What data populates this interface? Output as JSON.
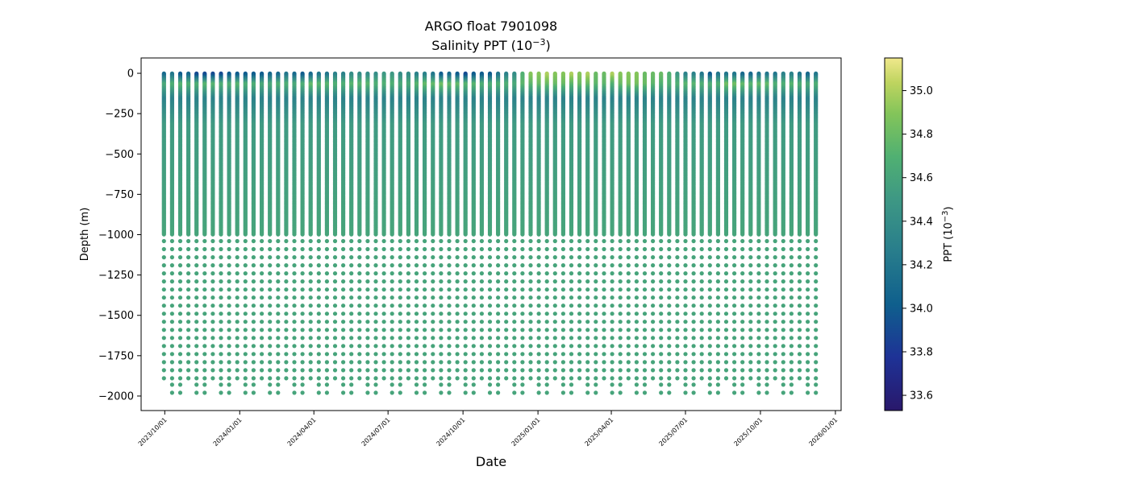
{
  "chart_data": {
    "type": "scatter",
    "title": "ARGO float 7901098",
    "subtitle": "Salinity PPT (10",
    "subtitle_sup": "−3",
    "subtitle_end": ")",
    "xlabel": "Date",
    "ylabel": "Depth (m)",
    "x_axis": {
      "type": "date",
      "range": [
        "2023-09-02",
        "2026-01-08"
      ],
      "ticks": [
        "2023-10-01",
        "2024-01-01",
        "2024-04-01",
        "2024-07-01",
        "2024-10-01",
        "2025-01-01",
        "2025-04-01",
        "2025-07-01",
        "2025-10-01",
        "2026-01-01"
      ],
      "tick_labels": [
        "2023/10/01",
        "2024/01/01",
        "2024/04/01",
        "2024/07/01",
        "2024/10/01",
        "2025/01/01",
        "2025/04/01",
        "2025/07/01",
        "2025/10/01",
        "2026/01/01"
      ]
    },
    "y_axis": {
      "range": [
        -2090,
        95
      ],
      "ticks": [
        0,
        -250,
        -500,
        -750,
        -1000,
        -1250,
        -1500,
        -1750,
        -2000
      ],
      "tick_labels": [
        "0",
        "−250",
        "−500",
        "−750",
        "−1000",
        "−1250",
        "−1500",
        "−1750",
        "−2000"
      ]
    },
    "colorbar": {
      "label": "PPT (10",
      "label_sup": "−3",
      "label_end": ")",
      "range": [
        33.53,
        35.15
      ],
      "ticks": [
        33.6,
        33.8,
        34.0,
        34.2,
        34.4,
        34.6,
        34.8,
        35.0
      ],
      "tick_labels": [
        "33.6",
        "33.8",
        "34.0",
        "34.2",
        "34.4",
        "34.6",
        "34.8",
        "35.0"
      ],
      "colormap": "haline"
    },
    "profiles": {
      "first_date": "2023-09-30",
      "last_date": "2025-12-16",
      "interval_days": 10,
      "max_depth": 2000,
      "dense_to_depth": 1000,
      "deep_sample_depths": [
        1040,
        1090,
        1140,
        1190,
        1240,
        1290,
        1340,
        1390,
        1440,
        1490,
        1540,
        1590,
        1640,
        1690,
        1740,
        1790,
        1840,
        1890,
        1930,
        1980
      ],
      "surface_salinity_by_profile": [
        34.1,
        34.2,
        34.0,
        34.1,
        33.9,
        33.9,
        33.9,
        33.9,
        34.0,
        34.0,
        34.0,
        34.0,
        34.0,
        34.1,
        34.1,
        34.2,
        34.1,
        34.0,
        34.1,
        34.2,
        34.2,
        34.3,
        34.3,
        34.4,
        34.4,
        34.4,
        34.4,
        34.5,
        34.5,
        34.4,
        34.4,
        34.3,
        34.3,
        34.2,
        34.0,
        34.1,
        34.0,
        33.9,
        34.0,
        34.0,
        34.0,
        34.2,
        34.3,
        34.4,
        34.7,
        34.9,
        34.9,
        35.0,
        34.9,
        34.9,
        35.0,
        34.9,
        35.0,
        34.8,
        34.8,
        35.0,
        34.9,
        34.9,
        34.9,
        34.8,
        34.8,
        34.8,
        34.7,
        34.5,
        34.3,
        34.3,
        34.2,
        34.0,
        34.2,
        34.2,
        34.2,
        34.1,
        34.1,
        34.2,
        34.2,
        34.2,
        34.3,
        34.3,
        34.2
      ],
      "subsurface_salinity_by_profile": [
        34.65,
        34.7,
        34.75,
        34.7,
        34.7,
        34.75,
        34.75,
        34.7,
        34.7,
        34.75,
        34.7,
        34.7,
        34.65,
        34.65,
        34.7,
        34.7,
        34.65,
        34.7,
        34.8,
        34.75,
        34.75,
        34.7,
        34.7,
        34.75,
        34.75,
        34.75,
        34.7,
        34.7,
        34.7,
        34.65,
        34.65,
        34.75,
        34.8,
        34.8,
        34.85,
        34.8,
        34.8,
        34.75,
        34.75,
        34.7,
        34.7,
        34.7,
        34.7,
        34.65,
        34.75,
        34.75,
        34.8,
        34.8,
        34.8,
        34.8,
        34.75,
        34.8,
        34.8,
        34.75,
        34.75,
        34.7,
        34.8,
        34.85,
        34.85,
        34.8,
        34.75,
        34.7,
        34.7,
        34.7,
        34.75,
        34.75,
        34.7,
        34.7,
        34.7,
        34.85,
        34.85,
        34.8,
        34.75,
        34.8,
        34.8,
        34.7,
        34.7,
        34.75,
        34.7
      ],
      "thermocline_salinity": 34.3,
      "intermediate_salinity": 34.52,
      "deep_salinity": 34.6
    }
  }
}
